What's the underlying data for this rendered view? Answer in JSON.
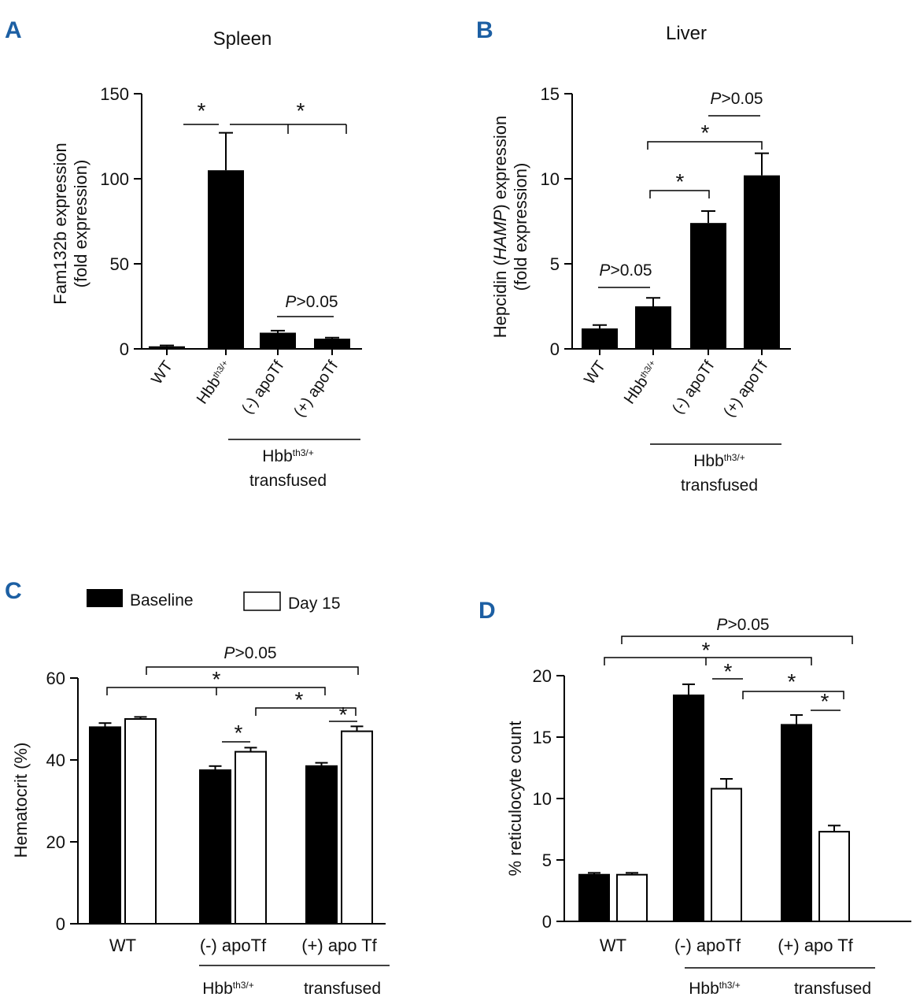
{
  "figure": {
    "panel_letters": [
      "A",
      "B",
      "C",
      "D"
    ]
  },
  "chart_data": [
    {
      "id": "A",
      "type": "bar",
      "title": "Spleen",
      "ylabel_line1": "Fam132b expression",
      "ylabel_line2": "(fold expression)",
      "ylim": [
        0,
        150
      ],
      "yticks": [
        0,
        50,
        100,
        150
      ],
      "categories": [
        "WT",
        "Hbb^th3/+",
        "(-) apoTf",
        "(+) apoTf"
      ],
      "values": [
        1.5,
        105,
        9.5,
        6
      ],
      "errors": [
        0.5,
        22,
        1.2,
        0.6
      ],
      "bar_color": "#000000",
      "group_label_line1": "Hbb^th3/+",
      "group_label_line2": "transfused",
      "annotations": [
        {
          "type": "star",
          "text": "*",
          "from": 0,
          "to": 1
        },
        {
          "type": "star",
          "text": "*",
          "from": 1,
          "to": [
            2,
            3
          ]
        },
        {
          "type": "p",
          "text": "P>0.05",
          "from": 2,
          "to": 3
        }
      ]
    },
    {
      "id": "B",
      "type": "bar",
      "title": "Liver",
      "ylabel_line1": "Hepcidin (HAMP) expression",
      "ylabel_line2": "(fold expression)",
      "ylim": [
        0,
        15
      ],
      "yticks": [
        0,
        5,
        10,
        15
      ],
      "categories": [
        "WT",
        "Hbb^th3/+",
        "(-) apoTf",
        "(+) apoTf"
      ],
      "values": [
        1.2,
        2.5,
        7.4,
        10.2
      ],
      "errors": [
        0.2,
        0.5,
        0.7,
        1.3
      ],
      "bar_color": "#000000",
      "group_label_line1": "Hbb^th3/+",
      "group_label_line2": "transfused",
      "annotations": [
        {
          "type": "p",
          "text": "P>0.05",
          "from": 0,
          "to": 1
        },
        {
          "type": "star",
          "text": "*",
          "from": 1,
          "to": 2
        },
        {
          "type": "star",
          "text": "*",
          "from": 1,
          "to": 3
        },
        {
          "type": "p",
          "text": "P>0.05",
          "from": 2,
          "to": 3
        }
      ]
    },
    {
      "id": "C",
      "type": "bar",
      "title": "",
      "ylabel": "Hematocrit (%)",
      "ylim": [
        0,
        60
      ],
      "yticks": [
        0,
        20,
        40,
        60
      ],
      "categories": [
        "WT",
        "(-) apoTf",
        "(+) apo Tf"
      ],
      "series": [
        {
          "name": "Baseline",
          "color": "#000000",
          "values": [
            48,
            37.5,
            38.5
          ],
          "errors": [
            1.0,
            1.0,
            0.8
          ]
        },
        {
          "name": "Day 15",
          "color": "#ffffff",
          "values": [
            50,
            42,
            47
          ],
          "errors": [
            0.5,
            1.0,
            1.2
          ]
        }
      ],
      "legend_position": "top",
      "group_label_line1": "Hbb^th3/+",
      "group_label_line2": "transfused",
      "annotations": [
        {
          "type": "p",
          "text": "P>0.05"
        },
        {
          "type": "star",
          "text": "*"
        },
        {
          "type": "star",
          "text": "*"
        },
        {
          "type": "star",
          "text": "*"
        },
        {
          "type": "star",
          "text": "*"
        }
      ]
    },
    {
      "id": "D",
      "type": "bar",
      "title": "",
      "ylabel": "% reticulocyte count",
      "ylim": [
        0,
        20
      ],
      "yticks": [
        0,
        5,
        10,
        15,
        20
      ],
      "categories": [
        "WT",
        "(-) apoTf",
        "(+) apo Tf"
      ],
      "series": [
        {
          "name": "Baseline",
          "color": "#000000",
          "values": [
            3.8,
            18.4,
            16
          ],
          "errors": [
            0.15,
            0.9,
            0.8
          ]
        },
        {
          "name": "Day 15",
          "color": "#ffffff",
          "values": [
            3.8,
            10.8,
            7.3
          ],
          "errors": [
            0.15,
            0.8,
            0.5
          ]
        }
      ],
      "group_label_line1": "Hbb^th3/+",
      "group_label_line2": "transfused",
      "annotations": [
        {
          "type": "p",
          "text": "P>0.05"
        },
        {
          "type": "star",
          "text": "*"
        },
        {
          "type": "star",
          "text": "*"
        },
        {
          "type": "star",
          "text": "*"
        },
        {
          "type": "star",
          "text": "*"
        }
      ]
    }
  ]
}
